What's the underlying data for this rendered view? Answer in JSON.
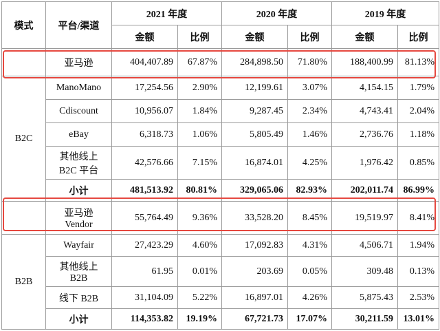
{
  "headers": {
    "mode": "模式",
    "channel": "平台/渠道",
    "years": [
      "2021 年度",
      "2020 年度",
      "2019 年度"
    ],
    "amount": "金额",
    "ratio": "比例"
  },
  "amazon_row": {
    "channel": "亚马逊",
    "cells": [
      "404,407.89",
      "67.87%",
      "284,898.50",
      "71.80%",
      "188,400.99",
      "81.13%"
    ]
  },
  "b2c": {
    "label": "B2C",
    "rows": [
      {
        "channel": "ManoMano",
        "cells": [
          "17,254.56",
          "2.90%",
          "12,199.61",
          "3.07%",
          "4,154.15",
          "1.79%"
        ]
      },
      {
        "channel": "Cdiscount",
        "cells": [
          "10,956.07",
          "1.84%",
          "9,287.45",
          "2.34%",
          "4,743.41",
          "2.04%"
        ]
      },
      {
        "channel": "eBay",
        "cells": [
          "6,318.73",
          "1.06%",
          "5,805.49",
          "1.46%",
          "2,736.76",
          "1.18%"
        ]
      },
      {
        "channel_line1": "其他线上",
        "channel_line2": "B2C 平台",
        "cells": [
          "42,576.66",
          "7.15%",
          "16,874.01",
          "4.25%",
          "1,976.42",
          "0.85%"
        ]
      }
    ],
    "subtotal": {
      "label": "小计",
      "cells": [
        "481,513.92",
        "80.81%",
        "329,065.06",
        "82.93%",
        "202,011.74",
        "86.99%"
      ]
    }
  },
  "vendor_row": {
    "channel_line1": "亚马逊",
    "channel_line2": "Vendor",
    "cells": [
      "55,764.49",
      "9.36%",
      "33,528.20",
      "8.45%",
      "19,519.97",
      "8.41%"
    ]
  },
  "b2b": {
    "label": "B2B",
    "rows": [
      {
        "channel": "Wayfair",
        "cells": [
          "27,423.29",
          "4.60%",
          "17,092.83",
          "4.31%",
          "4,506.71",
          "1.94%"
        ]
      },
      {
        "channel_line1": "其他线上",
        "channel_line2": "B2B",
        "cells": [
          "61.95",
          "0.01%",
          "203.69",
          "0.05%",
          "309.48",
          "0.13%"
        ]
      },
      {
        "channel": "线下 B2B",
        "cells": [
          "31,104.09",
          "5.22%",
          "16,897.01",
          "4.26%",
          "5,875.43",
          "2.53%"
        ]
      }
    ],
    "subtotal": {
      "label": "小计",
      "cells": [
        "114,353.82",
        "19.19%",
        "67,721.73",
        "17.07%",
        "30,211.59",
        "13.01%"
      ]
    }
  },
  "highlight_color": "#e6483f"
}
